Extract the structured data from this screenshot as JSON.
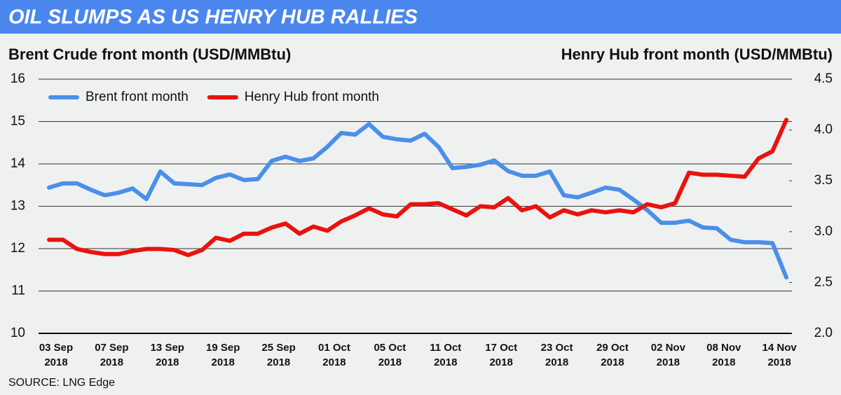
{
  "chart_data": {
    "type": "line",
    "title": "OIL SLUMPS AS US HENRY HUB RALLIES",
    "y_axis_title": "Brent Crude front month (USD/MMBtu)",
    "y2_axis_title": "Henry Hub front month (USD/MMBtu)",
    "source": "SOURCE: LNG Edge",
    "categories": [
      "03 Sep 2018",
      null,
      null,
      null,
      "07 Sep 2018",
      null,
      null,
      null,
      "13 Sep 2018",
      null,
      null,
      null,
      "19 Sep 2018",
      null,
      null,
      null,
      "25 Sep 2018",
      null,
      null,
      null,
      "01 Oct 2018",
      null,
      null,
      null,
      "05 Oct 2018",
      null,
      null,
      null,
      "11 Oct 2018",
      null,
      null,
      null,
      "17 Oct 2018",
      null,
      null,
      null,
      "23 Oct 2018",
      null,
      null,
      null,
      "29 Oct 2018",
      null,
      null,
      null,
      "02 Nov 2018",
      null,
      null,
      null,
      "08 Nov 2018",
      null,
      null,
      null,
      "14 Nov 2018",
      null
    ],
    "series": [
      {
        "name": "Brent front month",
        "color": "#4a8fe8",
        "values": [
          13.44,
          13.54,
          13.54,
          13.39,
          13.26,
          13.32,
          13.42,
          13.17,
          13.82,
          13.54,
          13.52,
          13.5,
          13.67,
          13.75,
          13.62,
          13.64,
          14.07,
          14.17,
          14.07,
          14.13,
          14.4,
          14.73,
          14.69,
          14.94,
          14.64,
          14.58,
          14.55,
          14.71,
          14.4,
          13.9,
          13.93,
          13.98,
          14.08,
          13.83,
          13.72,
          13.72,
          13.82,
          13.26,
          13.21,
          13.32,
          13.44,
          13.39,
          13.16,
          12.91,
          12.61,
          12.61,
          12.66,
          12.5,
          12.48,
          12.21,
          12.15,
          12.15,
          12.13,
          11.32
        ]
      },
      {
        "name": "Henry Hub front month",
        "color": "#e8130f",
        "axis": "y2",
        "values": [
          2.92,
          2.92,
          2.83,
          2.8,
          2.78,
          2.78,
          2.81,
          2.83,
          2.83,
          2.82,
          2.77,
          2.82,
          2.94,
          2.91,
          2.98,
          2.98,
          3.04,
          3.08,
          2.98,
          3.05,
          3.01,
          3.1,
          3.16,
          3.23,
          3.17,
          3.15,
          3.27,
          3.27,
          3.28,
          3.22,
          3.16,
          3.25,
          3.24,
          3.33,
          3.21,
          3.25,
          3.14,
          3.21,
          3.17,
          3.21,
          3.19,
          3.21,
          3.19,
          3.27,
          3.24,
          3.28,
          3.58,
          3.56,
          3.56,
          3.55,
          3.54,
          3.72,
          3.79,
          4.1
        ]
      }
    ],
    "ylim": [
      10,
      16
    ],
    "yticks": [
      10,
      11,
      12,
      13,
      14,
      15,
      16
    ],
    "y2lim": [
      2,
      4.5
    ],
    "y2ticks": [
      {
        "value": 2,
        "label": "2.0"
      },
      2.5,
      {
        "value": 3,
        "label": "3.0"
      },
      3.5,
      {
        "value": 4,
        "label": "4.0"
      },
      4.5
    ],
    "grid": true,
    "legend": "upper left"
  }
}
